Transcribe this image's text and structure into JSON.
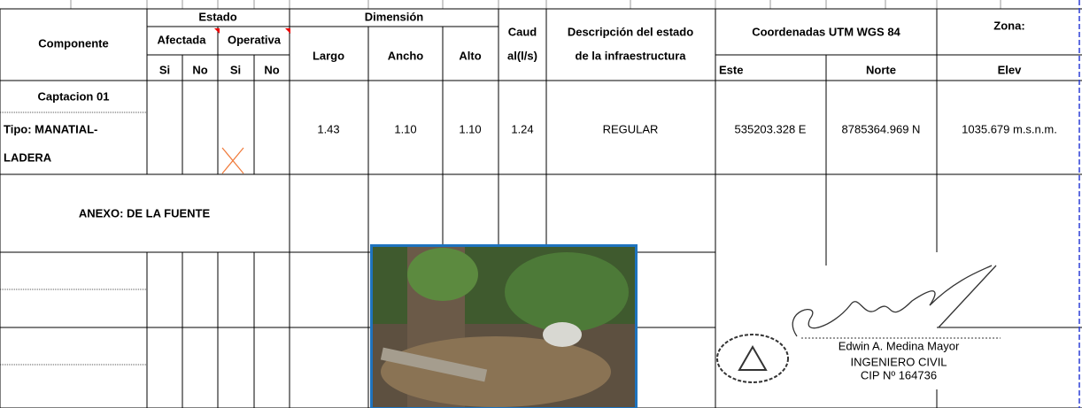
{
  "header": {
    "componente": "Componente",
    "estado": "Estado",
    "afectada": "Afectada",
    "operativa": "Operativa",
    "si1": "Si",
    "no1": "No",
    "si2": "Si",
    "no2": "No",
    "dimension": "Dimensión",
    "largo": "Largo",
    "ancho": "Ancho",
    "alto": "Alto",
    "caudal": [
      "Caud",
      "al(l/s)"
    ],
    "descripcion": [
      "Descripción del estado",
      "de la infraestructura"
    ],
    "coordenadas": "Coordenadas UTM WGS 84",
    "zona": "Zona:",
    "este": "Este",
    "norte": "Norte",
    "elev": "Elev"
  },
  "row": {
    "componente": [
      "Captacion 01",
      "Tipo: MANATIAL-",
      "LADERA"
    ],
    "largo": "1.43",
    "ancho": "1.10",
    "alto": "1.10",
    "caudal": "1.24",
    "descripcion": "REGULAR",
    "este": "535203.328 E",
    "norte": "8785364.969 N",
    "elev": "1035.679 m.s.n.m."
  },
  "annex": "ANEXO: DE LA FUENTE",
  "stamp": {
    "name": "Edwin A. Medina Mayor",
    "title": "INGENIERO CIVIL",
    "cip": "CIP Nº 164736"
  }
}
